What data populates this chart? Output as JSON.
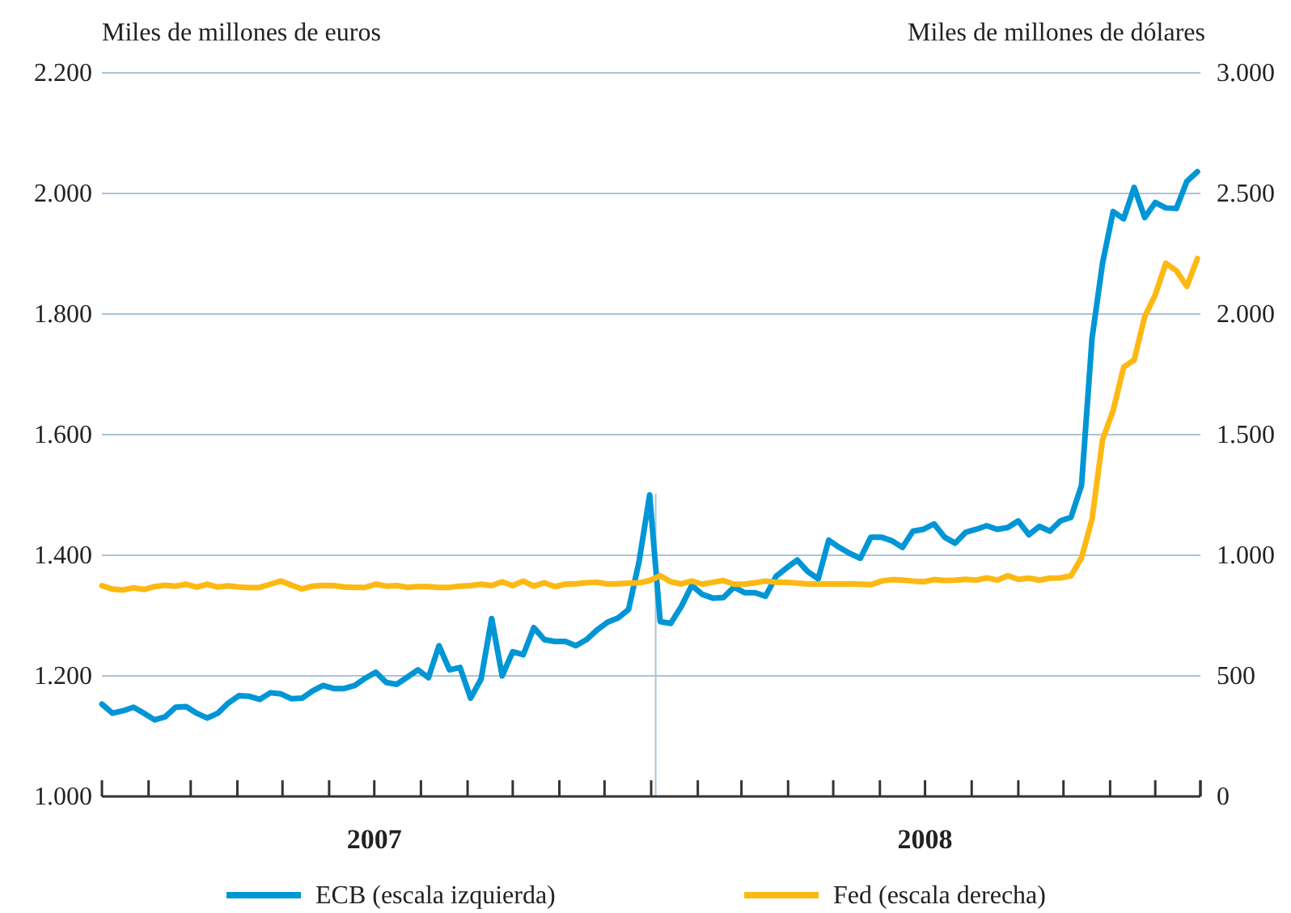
{
  "chart_data": {
    "type": "line",
    "ylabel": "Miles de millones de euros",
    "y2label": "Miles de millones de dólares",
    "x": [
      "2007-01-01",
      "2007-01-08",
      "2007-01-15",
      "2007-01-22",
      "2007-01-29",
      "2007-02-05",
      "2007-02-12",
      "2007-02-19",
      "2007-02-26",
      "2007-03-05",
      "2007-03-12",
      "2007-03-19",
      "2007-03-26",
      "2007-04-02",
      "2007-04-09",
      "2007-04-16",
      "2007-04-23",
      "2007-04-30",
      "2007-05-07",
      "2007-05-14",
      "2007-05-21",
      "2007-05-28",
      "2007-06-04",
      "2007-06-11",
      "2007-06-18",
      "2007-06-25",
      "2007-07-02",
      "2007-07-09",
      "2007-07-16",
      "2007-07-23",
      "2007-07-30",
      "2007-08-06",
      "2007-08-13",
      "2007-08-20",
      "2007-08-27",
      "2007-09-03",
      "2007-09-10",
      "2007-09-17",
      "2007-09-24",
      "2007-10-01",
      "2007-10-08",
      "2007-10-15",
      "2007-10-22",
      "2007-10-29",
      "2007-11-05",
      "2007-11-12",
      "2007-11-19",
      "2007-11-26",
      "2007-12-03",
      "2007-12-10",
      "2007-12-17",
      "2007-12-24",
      "2007-12-31",
      "2008-01-07",
      "2008-01-14",
      "2008-01-21",
      "2008-01-28",
      "2008-02-04",
      "2008-02-11",
      "2008-02-18",
      "2008-02-25",
      "2008-03-03",
      "2008-03-10",
      "2008-03-17",
      "2008-03-24",
      "2008-03-31",
      "2008-04-07",
      "2008-04-14",
      "2008-04-21",
      "2008-04-28",
      "2008-05-05",
      "2008-05-12",
      "2008-05-19",
      "2008-05-26",
      "2008-06-02",
      "2008-06-09",
      "2008-06-16",
      "2008-06-23",
      "2008-06-30",
      "2008-07-07",
      "2008-07-14",
      "2008-07-21",
      "2008-07-28",
      "2008-08-04",
      "2008-08-11",
      "2008-08-18",
      "2008-08-25",
      "2008-09-01",
      "2008-09-08",
      "2008-09-15",
      "2008-09-22",
      "2008-09-29",
      "2008-10-06",
      "2008-10-13",
      "2008-10-20",
      "2008-10-27",
      "2008-11-03",
      "2008-11-10",
      "2008-11-17",
      "2008-11-24",
      "2008-12-01",
      "2008-12-08",
      "2008-12-15",
      "2008-12-22",
      "2008-12-29"
    ],
    "series": [
      {
        "name": "ECB (escala izquierda)",
        "color": "#0096d6",
        "values": [
          1153,
          1138,
          1142,
          1148,
          1138,
          1127,
          1132,
          1148,
          1149,
          1138,
          1130,
          1138,
          1155,
          1167,
          1166,
          1161,
          1172,
          1170,
          1162,
          1163,
          1175,
          1184,
          1179,
          1179,
          1184,
          1196,
          1206,
          1189,
          1186,
          1198,
          1210,
          1197,
          1250,
          1210,
          1214,
          1163,
          1195,
          1295,
          1200,
          1240,
          1235,
          1280,
          1260,
          1257,
          1257,
          1250,
          1260,
          1276,
          1289,
          1296,
          1310,
          1390,
          1500,
          1290,
          1287,
          1315,
          1350,
          1335,
          1329,
          1330,
          1347,
          1338,
          1338,
          1332,
          1365,
          1379,
          1392,
          1373,
          1361,
          1425,
          1413,
          1403,
          1395,
          1430,
          1430,
          1424,
          1413,
          1440,
          1443,
          1452,
          1430,
          1420,
          1438,
          1443,
          1449,
          1443,
          1446,
          1457,
          1434,
          1448,
          1440,
          1457,
          1463,
          1516,
          1760,
          1885,
          1970,
          1958,
          2010,
          1960,
          1985,
          1976,
          1975,
          2020,
          2036
        ]
      },
      {
        "name": "Fed (escala derecha)",
        "color": "#fdb913",
        "axis": "y2",
        "values": [
          874,
          860,
          856,
          865,
          858,
          870,
          876,
          872,
          880,
          868,
          880,
          868,
          873,
          868,
          866,
          867,
          880,
          893,
          876,
          860,
          872,
          875,
          874,
          868,
          867,
          867,
          880,
          872,
          874,
          867,
          870,
          870,
          867,
          867,
          872,
          874,
          880,
          874,
          890,
          874,
          893,
          872,
          886,
          870,
          880,
          882,
          886,
          888,
          881,
          882,
          884,
          886,
          895,
          915,
          890,
          881,
          893,
          880,
          888,
          895,
          880,
          880,
          886,
          893,
          888,
          888,
          884,
          881,
          881,
          881,
          881,
          881,
          880,
          878,
          893,
          899,
          897,
          893,
          890,
          899,
          895,
          897,
          900,
          897,
          906,
          897,
          915,
          900,
          905,
          897,
          905,
          906,
          915,
          990,
          1150,
          1480,
          1600,
          1780,
          1810,
          1990,
          2080,
          2210,
          2180,
          2115,
          2230
        ]
      }
    ],
    "xlim": [
      "2007-01-01",
      "2008-12-31"
    ],
    "xticks": [
      {
        "value": "2007-01-01",
        "label": null
      },
      {
        "value": "2007-02-01",
        "label": null
      },
      {
        "value": "2007-03-01",
        "label": null
      },
      {
        "value": "2007-04-01",
        "label": null
      },
      {
        "value": "2007-05-01",
        "label": null
      },
      {
        "value": "2007-06-01",
        "label": null
      },
      {
        "value": "2007-07-01",
        "label": "2007"
      },
      {
        "value": "2007-08-01",
        "label": null
      },
      {
        "value": "2007-09-01",
        "label": null
      },
      {
        "value": "2007-10-01",
        "label": null
      },
      {
        "value": "2007-11-01",
        "label": null
      },
      {
        "value": "2007-12-01",
        "label": null
      },
      {
        "value": "2008-01-01",
        "label": null
      },
      {
        "value": "2008-02-01",
        "label": null
      },
      {
        "value": "2008-03-01",
        "label": null
      },
      {
        "value": "2008-04-01",
        "label": null
      },
      {
        "value": "2008-05-01",
        "label": null
      },
      {
        "value": "2008-06-01",
        "label": null
      },
      {
        "value": "2008-07-01",
        "label": "2008"
      },
      {
        "value": "2008-08-01",
        "label": null
      },
      {
        "value": "2008-09-01",
        "label": null
      },
      {
        "value": "2008-10-01",
        "label": null
      },
      {
        "value": "2008-11-01",
        "label": null
      },
      {
        "value": "2008-12-01",
        "label": null
      },
      {
        "value": "2008-12-31",
        "label": null
      }
    ],
    "ylim": [
      1000,
      2200
    ],
    "yticks": [
      {
        "value": 1000,
        "label": "1.000"
      },
      {
        "value": 1200,
        "label": "1.200"
      },
      {
        "value": 1400,
        "label": "1.400"
      },
      {
        "value": 1600,
        "label": "1.600"
      },
      {
        "value": 1800,
        "label": "1.800"
      },
      {
        "value": 2000,
        "label": "2.000"
      },
      {
        "value": 2200,
        "label": "2.200"
      }
    ],
    "y2lim": [
      0,
      3000
    ],
    "y2ticks": [
      0,
      500,
      {
        "value": 1000,
        "label": "1.000"
      },
      {
        "value": 1500,
        "label": "1.500"
      },
      {
        "value": 2000,
        "label": "2.000"
      },
      {
        "value": 2500,
        "label": "2.500"
      },
      {
        "value": 3000,
        "label": "3.000"
      }
    ],
    "ref_lines": [
      {
        "axis": "x",
        "value": "2008-01-04",
        "color": "#a9c4d8"
      }
    ],
    "grid": "y",
    "legend": "bottom",
    "marker": "none",
    "line_style": "solid"
  }
}
